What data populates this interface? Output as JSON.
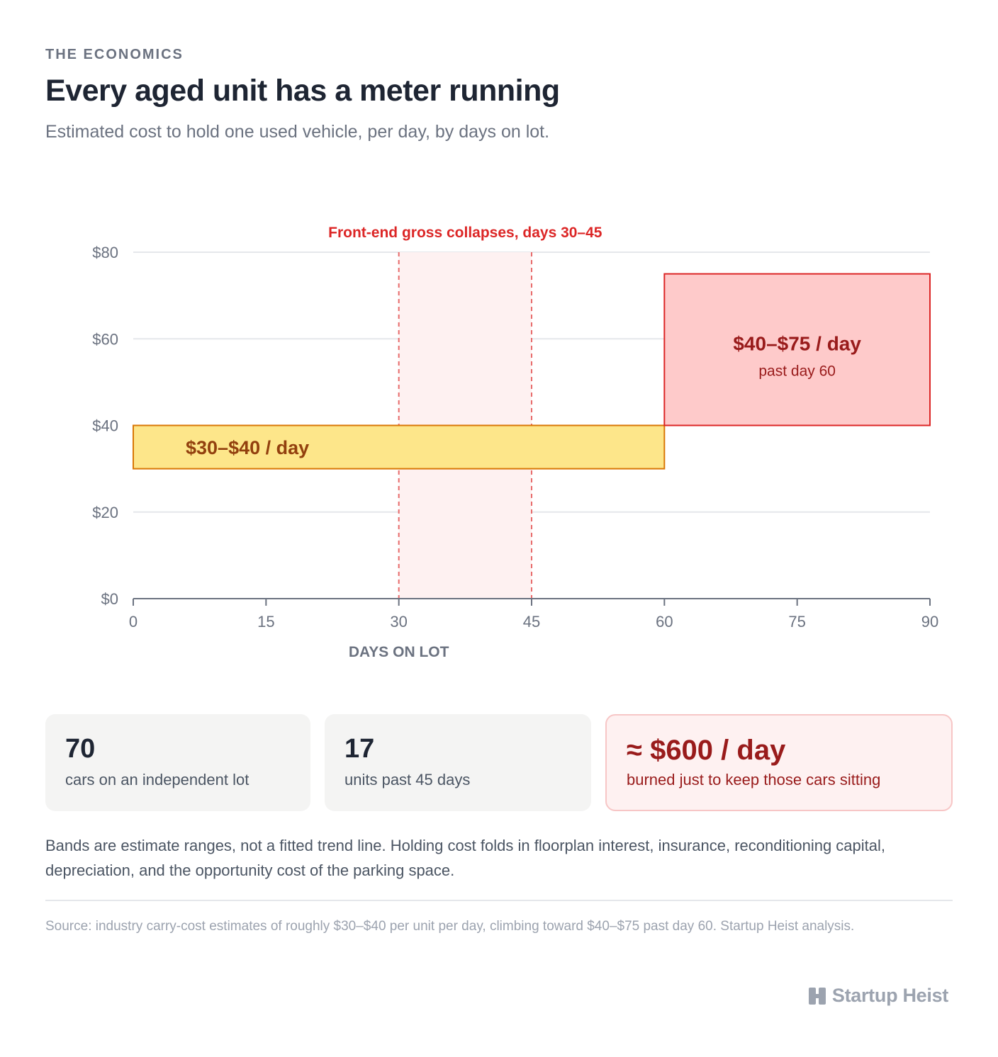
{
  "header": {
    "eyebrow": "THE ECONOMICS",
    "title": "Every aged unit has a meter running",
    "subtitle": "Estimated cost to hold one used vehicle, per day, by days on lot."
  },
  "chart_data": {
    "type": "bar",
    "xlabel": "DAYS ON LOT",
    "ylabel": "",
    "xlim": [
      0,
      90
    ],
    "ylim": [
      0,
      80
    ],
    "x_ticks": [
      0,
      15,
      30,
      45,
      60,
      75,
      90
    ],
    "y_ticks": [
      0,
      20,
      40,
      60,
      80
    ],
    "y_tick_labels": [
      "$0",
      "$20",
      "$40",
      "$60",
      "$80"
    ],
    "grid": "horizontal",
    "annotation": {
      "label": "Front-end gross collapses, days 30–45",
      "x_start": 30,
      "x_end": 45,
      "color": "#dc2626"
    },
    "series": [
      {
        "x_start": 0,
        "x_end": 60,
        "y_low": 30,
        "y_high": 40,
        "label": "$30–$40 / day",
        "sublabel": "",
        "fill": "#fde68a",
        "stroke": "#d97706",
        "text_color": "#92400e"
      },
      {
        "x_start": 60,
        "x_end": 90,
        "y_low": 40,
        "y_high": 75,
        "label": "$40–$75 / day",
        "sublabel": "past day 60",
        "fill": "#fecaca",
        "stroke": "#dc2626",
        "text_color": "#991b1b"
      }
    ]
  },
  "stats": [
    {
      "value": "70",
      "label": "cars on an independent lot"
    },
    {
      "value": "17",
      "label": "units past 45 days"
    },
    {
      "value": "≈ $600 / day",
      "label": "burned just to keep those cars sitting"
    }
  ],
  "note": "Bands are estimate ranges, not a fitted trend line. Holding cost folds in floorplan interest, insurance, reconditioning capital, depreciation, and the opportunity cost of the parking space.",
  "source": "Source: industry carry-cost estimates of roughly $30–$40 per unit per day, climbing toward $40–$75 past day 60. Startup Heist analysis.",
  "brand": {
    "name": "Startup Heist",
    "icon": "startup-heist-logo-icon"
  }
}
